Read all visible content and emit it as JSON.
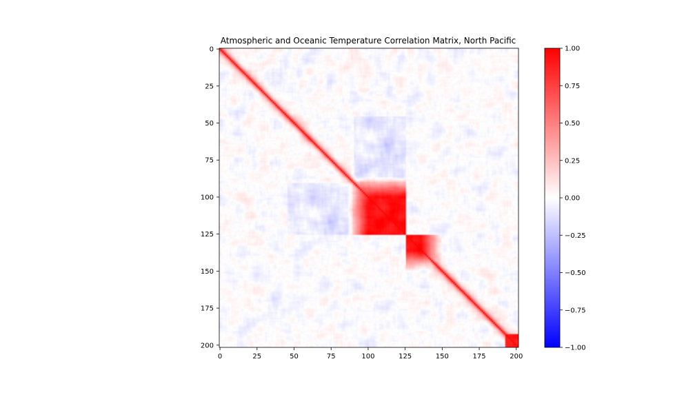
{
  "chart_data": {
    "type": "heatmap",
    "title": "Atmospheric and Oceanic Temperature Correlation Matrix, North Pacific",
    "xlabel": "",
    "ylabel": "",
    "size": 202,
    "block_boundary": 126,
    "xlim": [
      0,
      202
    ],
    "ylim": [
      202,
      0
    ],
    "xticks": [
      0,
      25,
      50,
      75,
      100,
      125,
      150,
      175,
      200
    ],
    "yticks": [
      0,
      25,
      50,
      75,
      100,
      125,
      150,
      175,
      200
    ],
    "colormap": "bwr",
    "colors": {
      "low": "#0000ff",
      "mid": "#ffffff",
      "high": "#ff0000"
    },
    "clim": [
      -1.0,
      1.0
    ],
    "colorbar_ticks": [
      "1.00",
      "0.75",
      "0.50",
      "0.25",
      "0.00",
      "−0.25",
      "−0.50",
      "−0.75",
      "−1.00"
    ],
    "colorbar_values": [
      1.0,
      0.75,
      0.5,
      0.25,
      0.0,
      -0.25,
      -0.5,
      -0.75,
      -1.0
    ],
    "diagonal": 1.0,
    "features": [
      {
        "region": "rows 90-126 x cols 90-126",
        "approx_value": 0.95
      },
      {
        "region": "rows 126-150 x cols 126-150",
        "approx_value": 0.95
      },
      {
        "region": "rows 45-90 x cols 90-126",
        "approx_value": -0.1
      },
      {
        "region": "off-block background",
        "approx_value": 0.0
      }
    ]
  }
}
